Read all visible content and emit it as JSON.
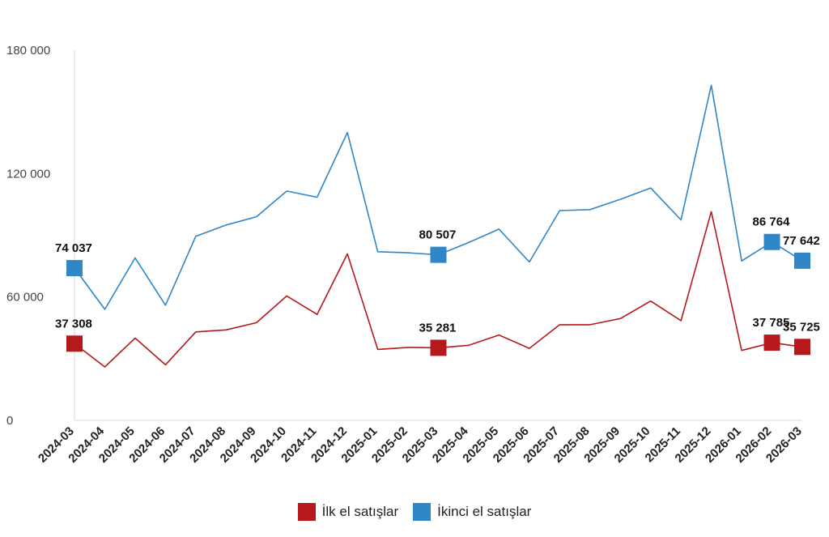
{
  "chart_data": {
    "type": "line",
    "title": "",
    "xlabel": "",
    "ylabel": "",
    "ylim": [
      0,
      180000
    ],
    "yticks": [
      0,
      60000,
      120000,
      180000
    ],
    "ytick_labels": [
      "0",
      "60 000",
      "120 000",
      "180 000"
    ],
    "grid": false,
    "legend_position": "bottom",
    "categories": [
      "2024-03",
      "2024-04",
      "2024-05",
      "2024-06",
      "2024-07",
      "2024-08",
      "2024-09",
      "2024-10",
      "2024-11",
      "2024-12",
      "2025-01",
      "2025-02",
      "2025-03",
      "2025-04",
      "2025-05",
      "2025-06",
      "2025-07",
      "2025-08",
      "2025-09",
      "2025-10",
      "2025-11",
      "2025-12",
      "2026-01",
      "2026-02",
      "2026-03"
    ],
    "series": [
      {
        "name": "İlk el satışlar",
        "color": "#b5191c",
        "values": [
          37308,
          26000,
          40000,
          27000,
          43000,
          44000,
          47500,
          60500,
          51500,
          81000,
          34500,
          35500,
          35281,
          36500,
          41500,
          35000,
          46500,
          46500,
          49500,
          58000,
          48500,
          101500,
          34000,
          37785,
          35725
        ],
        "labels": [
          {
            "index": 0,
            "text": "37 308"
          },
          {
            "index": 12,
            "text": "35 281"
          },
          {
            "index": 23,
            "text": "37 785"
          },
          {
            "index": 24,
            "text": "35 725"
          }
        ]
      },
      {
        "name": "İkinci el satışlar",
        "color": "#2f86c9",
        "values": [
          74037,
          54000,
          79000,
          56000,
          89500,
          95000,
          99000,
          111500,
          108500,
          140000,
          82000,
          81500,
          80507,
          86500,
          93000,
          77000,
          102000,
          102500,
          107500,
          113000,
          97500,
          163000,
          77500,
          86764,
          77642
        ],
        "labels": [
          {
            "index": 0,
            "text": "74 037"
          },
          {
            "index": 12,
            "text": "80 507"
          },
          {
            "index": 23,
            "text": "86 764"
          },
          {
            "index": 24,
            "text": "77 642"
          }
        ]
      }
    ]
  }
}
